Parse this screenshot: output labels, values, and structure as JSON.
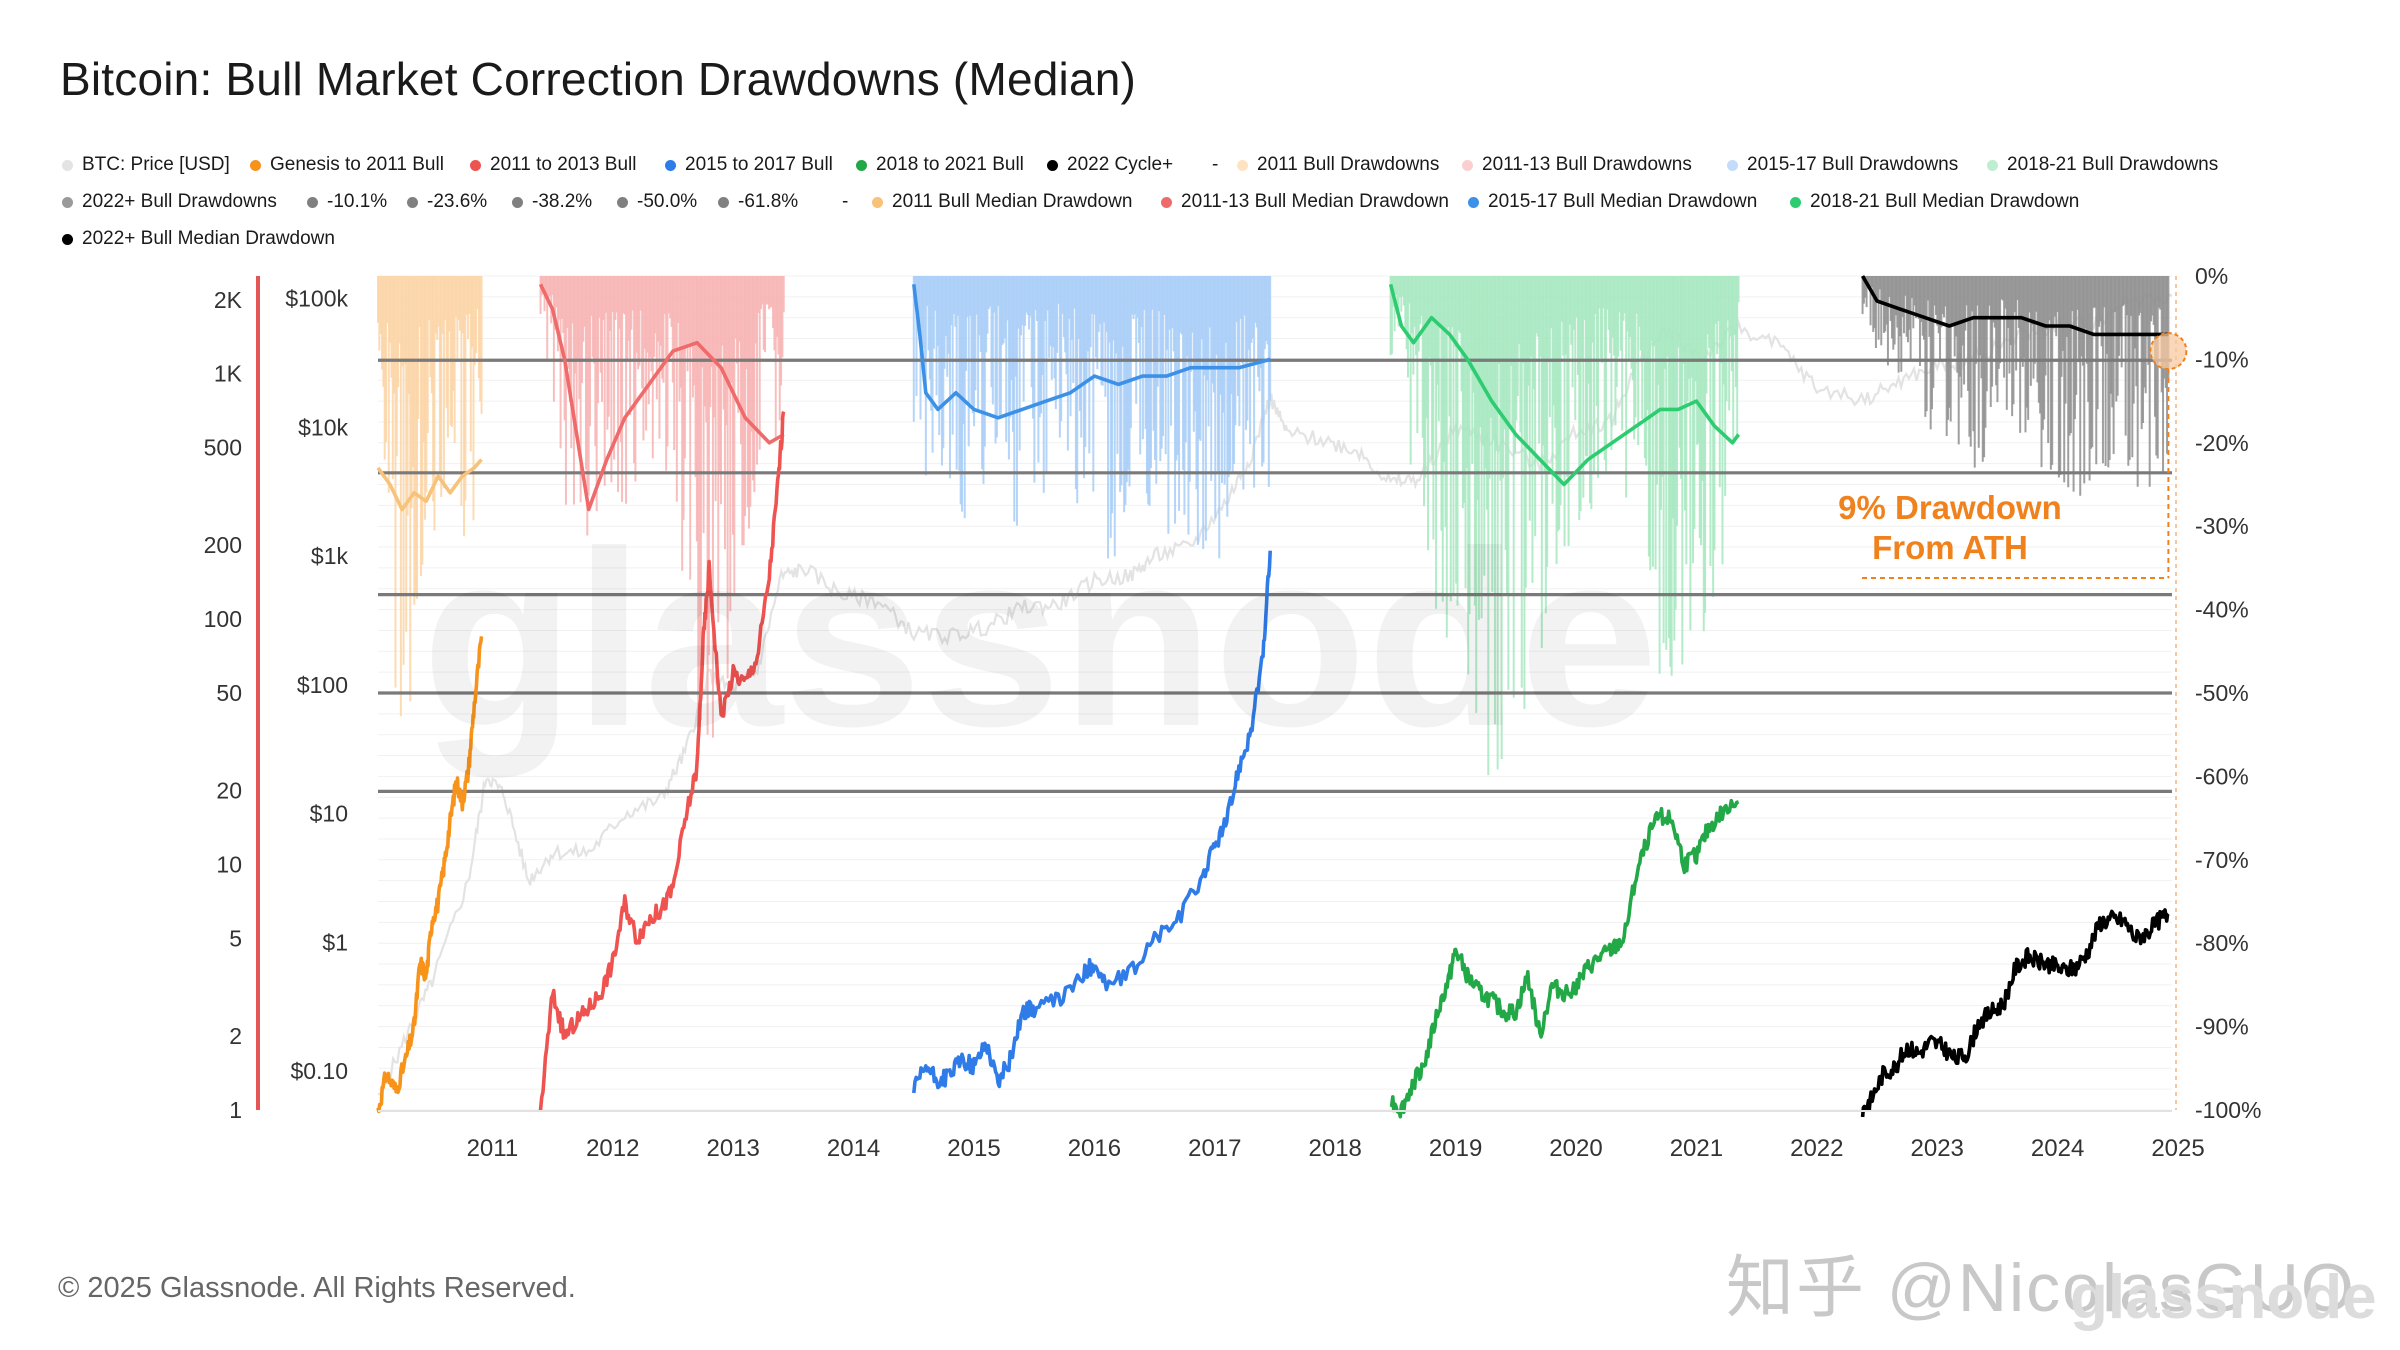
{
  "title": "Bitcoin: Bull Market Correction Drawdowns (Median)",
  "legend_rows": [
    [
      {
        "label": "BTC: Price [USD]",
        "color": "#e3e3e3",
        "marker": "dot"
      },
      {
        "label": "Genesis to 2011 Bull",
        "color": "#f7931a",
        "marker": "dot"
      },
      {
        "label": "2011 to 2013 Bull",
        "color": "#ef5350",
        "marker": "dot"
      },
      {
        "label": "2015 to 2017 Bull",
        "color": "#2f7be8",
        "marker": "dot"
      },
      {
        "label": "2018 to 2021 Bull",
        "color": "#22a846",
        "marker": "dot"
      },
      {
        "label": "2022 Cycle+",
        "color": "#000000",
        "marker": "dot"
      },
      {
        "label": "-",
        "color": "",
        "marker": "none"
      },
      {
        "label": "2011 Bull Drawdowns",
        "color": "#fde3c2",
        "marker": "dot"
      },
      {
        "label": "2011-13 Bull Drawdowns",
        "color": "#fbcfd0",
        "marker": "dot"
      },
      {
        "label": "2015-17 Bull Drawdowns",
        "color": "#c4dcfb",
        "marker": "dot"
      },
      {
        "label": "2018-21 Bull Drawdowns",
        "color": "#bdeed0",
        "marker": "dot"
      }
    ],
    [
      {
        "label": "2022+ Bull Drawdowns",
        "color": "#9a9a9a",
        "marker": "dot"
      },
      {
        "label": "-10.1%",
        "color": "#808080",
        "marker": "dot"
      },
      {
        "label": "-23.6%",
        "color": "#808080",
        "marker": "dot"
      },
      {
        "label": "-38.2%",
        "color": "#808080",
        "marker": "dot"
      },
      {
        "label": "-50.0%",
        "color": "#808080",
        "marker": "dot"
      },
      {
        "label": "-61.8%",
        "color": "#808080",
        "marker": "dot"
      },
      {
        "label": "-",
        "color": "",
        "marker": "none"
      },
      {
        "label": "2011 Bull Median Drawdown",
        "color": "#f7c27a",
        "marker": "dot"
      },
      {
        "label": "2011-13 Bull Median Drawdown",
        "color": "#ef6b6b",
        "marker": "dot"
      },
      {
        "label": "2015-17 Bull Median Drawdown",
        "color": "#3c91e6",
        "marker": "dot"
      },
      {
        "label": "2018-21 Bull Median Drawdown",
        "color": "#2ecc71",
        "marker": "dot"
      }
    ],
    [
      {
        "label": "2022+ Bull Median Drawdown",
        "color": "#000000",
        "marker": "dot"
      }
    ]
  ],
  "axes": {
    "multiplier_ticks": [
      "2K",
      "1K",
      "500",
      "200",
      "100",
      "50",
      "20",
      "10",
      "5",
      "2",
      "1"
    ],
    "price_ticks": [
      "$100k",
      "$10k",
      "$1k",
      "$100",
      "$10",
      "$1",
      "$0.10"
    ],
    "drawdown_ticks": [
      "0%",
      "-10%",
      "-20%",
      "-30%",
      "-40%",
      "-50%",
      "-60%",
      "-70%",
      "-80%",
      "-90%",
      "-100%"
    ],
    "x_ticks": [
      "2011",
      "2012",
      "2013",
      "2014",
      "2015",
      "2016",
      "2017",
      "2018",
      "2019",
      "2020",
      "2021",
      "2022",
      "2023",
      "2024",
      "2025"
    ]
  },
  "annotation": {
    "line1": "9% Drawdown",
    "line2": "From ATH"
  },
  "watermark": {
    "logo_text": "glassnode"
  },
  "copyright": "© 2025 Glassnode. All Rights Reserved.",
  "watermark_zh": "知乎 @NicolasGUO",
  "chart_data": {
    "type": "line",
    "title": "Bitcoin: Bull Market Correction Drawdowns (Median)",
    "x_range": [
      2010.55,
      2025.45
    ],
    "y_left_scale": "log",
    "y_left_multiplier_range": [
      1,
      2500
    ],
    "y_left_price_range": [
      0.05,
      150000
    ],
    "y_right_range": [
      -100,
      0
    ],
    "fib_levels": [
      -10.1,
      -23.6,
      -38.2,
      -50.0,
      -61.8
    ],
    "series": [
      {
        "name": "BTC: Price [USD]",
        "axis": "price",
        "color": "#e3e3e3",
        "x": [
          2010.55,
          2010.8,
          2011.0,
          2011.3,
          2011.45,
          2011.6,
          2011.8,
          2012.0,
          2012.3,
          2012.6,
          2012.9,
          2013.1,
          2013.3,
          2013.5,
          2013.7,
          2013.9,
          2014.1,
          2014.4,
          2014.7,
          2015.0,
          2015.3,
          2015.6,
          2015.9,
          2016.2,
          2016.5,
          2016.8,
          2017.0,
          2017.3,
          2017.6,
          2017.8,
          2017.96,
          2018.1,
          2018.4,
          2018.7,
          2018.96,
          2019.2,
          2019.5,
          2019.8,
          2020.2,
          2020.5,
          2020.8,
          2021.0,
          2021.25,
          2021.55,
          2021.85,
          2022.2,
          2022.5,
          2022.9,
          2023.2,
          2023.5,
          2023.8,
          2024.2,
          2024.5,
          2024.8,
          2025.1,
          2025.45
        ],
        "y": [
          0.06,
          0.2,
          0.5,
          3,
          20,
          14,
          3,
          5,
          5,
          10,
          13,
          30,
          120,
          90,
          130,
          700,
          800,
          500,
          450,
          250,
          240,
          280,
          400,
          420,
          650,
          700,
          1000,
          1200,
          2700,
          6000,
          17000,
          9000,
          8000,
          6500,
          3700,
          4000,
          10000,
          8000,
          5000,
          9200,
          11500,
          30000,
          58000,
          35000,
          60000,
          42000,
          20000,
          16500,
          23000,
          30000,
          35000,
          52000,
          62000,
          65000,
          100000,
          105000
        ]
      },
      {
        "name": "Genesis to 2011 Bull",
        "axis": "multiplier",
        "color": "#f7931a",
        "x": [
          2010.55,
          2010.62,
          2010.7,
          2010.78,
          2010.85,
          2010.9,
          2010.95,
          2011.0,
          2011.05,
          2011.1,
          2011.15,
          2011.2,
          2011.25,
          2011.3,
          2011.35,
          2011.41
        ],
        "y": [
          1,
          1.4,
          1.2,
          1.6,
          2.2,
          4,
          3.5,
          6,
          7,
          10,
          15,
          22,
          18,
          24,
          45,
          85
        ]
      },
      {
        "name": "2011 to 2013 Bull",
        "axis": "multiplier",
        "color": "#ef5350",
        "x": [
          2011.9,
          2012.0,
          2012.1,
          2012.2,
          2012.3,
          2012.4,
          2012.5,
          2012.6,
          2012.7,
          2012.8,
          2012.9,
          2013.0,
          2013.1,
          2013.2,
          2013.25,
          2013.3,
          2013.4,
          2013.5,
          2013.6,
          2013.7,
          2013.8,
          2013.87,
          2013.92
        ],
        "y": [
          1,
          3,
          2,
          2.3,
          2.6,
          3,
          4,
          7,
          5,
          6,
          6.5,
          8,
          15,
          25,
          80,
          160,
          40,
          60,
          55,
          70,
          150,
          350,
          700
        ]
      },
      {
        "name": "2015 to 2017 Bull",
        "axis": "multiplier",
        "color": "#2f7be8",
        "x": [
          2015.0,
          2015.1,
          2015.2,
          2015.3,
          2015.4,
          2015.5,
          2015.6,
          2015.7,
          2015.8,
          2015.9,
          2016.0,
          2016.2,
          2016.4,
          2016.5,
          2016.6,
          2016.8,
          2017.0,
          2017.2,
          2017.4,
          2017.5,
          2017.6,
          2017.7,
          2017.8,
          2017.9,
          2017.96
        ],
        "y": [
          1.2,
          1.5,
          1.3,
          1.4,
          1.6,
          1.5,
          1.9,
          1.3,
          1.6,
          2.5,
          2.6,
          2.8,
          3.5,
          4,
          3.2,
          3.6,
          5,
          6,
          9,
          12,
          15,
          25,
          35,
          70,
          190
        ]
      },
      {
        "name": "2018 to 2021 Bull",
        "axis": "multiplier",
        "color": "#22a846",
        "x": [
          2018.96,
          2019.05,
          2019.15,
          2019.25,
          2019.35,
          2019.45,
          2019.5,
          2019.6,
          2019.7,
          2019.8,
          2019.9,
          2020.0,
          2020.1,
          2020.2,
          2020.3,
          2020.4,
          2020.5,
          2020.6,
          2020.7,
          2020.8,
          2020.9,
          2021.0,
          2021.1,
          2021.2,
          2021.3,
          2021.4,
          2021.5,
          2021.6,
          2021.7,
          2021.85
        ],
        "y": [
          1.1,
          1.0,
          1.3,
          1.6,
          2.5,
          3.5,
          4.5,
          3.5,
          3.0,
          2.8,
          2.5,
          2.5,
          3.5,
          2.0,
          3.2,
          3.0,
          3.2,
          3.8,
          4.2,
          4.5,
          5,
          9,
          13,
          16,
          15,
          10,
          11,
          14,
          16,
          18
        ]
      },
      {
        "name": "2022 Cycle+",
        "axis": "multiplier",
        "color": "#000000",
        "x": [
          2022.88,
          2022.95,
          2023.05,
          2023.15,
          2023.25,
          2023.35,
          2023.45,
          2023.55,
          2023.65,
          2023.75,
          2023.85,
          2023.95,
          2024.05,
          2024.15,
          2024.25,
          2024.35,
          2024.45,
          2024.55,
          2024.65,
          2024.75,
          2024.85,
          2024.95,
          2025.05,
          2025.15,
          2025.25,
          2025.35,
          2025.42
        ],
        "y": [
          1.0,
          1.1,
          1.4,
          1.5,
          1.8,
          1.7,
          1.9,
          1.8,
          1.6,
          1.7,
          2.3,
          2.5,
          2.7,
          3.8,
          4.2,
          4.0,
          3.9,
          3.7,
          3.8,
          4.4,
          5.8,
          6.0,
          5.9,
          5.0,
          5.3,
          6.0,
          6.3
        ]
      },
      {
        "name": "2011 Bull Median Drawdown",
        "axis": "drawdown",
        "color": "#f7c27a",
        "x": [
          2010.55,
          2010.65,
          2010.75,
          2010.85,
          2010.95,
          2011.05,
          2011.15,
          2011.25,
          2011.35,
          2011.41
        ],
        "y": [
          -23,
          -25,
          -28,
          -26,
          -27,
          -24,
          -26,
          -24,
          -23,
          -22
        ]
      },
      {
        "name": "2011-13 Bull Median Drawdown",
        "axis": "drawdown",
        "color": "#ef6b6b",
        "x": [
          2011.9,
          2012.0,
          2012.1,
          2012.2,
          2012.3,
          2012.45,
          2012.6,
          2012.8,
          2013.0,
          2013.2,
          2013.4,
          2013.6,
          2013.8,
          2013.92
        ],
        "y": [
          -1,
          -4,
          -10,
          -19,
          -28,
          -22,
          -17,
          -13,
          -9,
          -8,
          -11,
          -17,
          -20,
          -19
        ]
      },
      {
        "name": "2015-17 Bull Median Drawdown",
        "axis": "drawdown",
        "color": "#3c91e6",
        "x": [
          2015.0,
          2015.05,
          2015.1,
          2015.2,
          2015.35,
          2015.5,
          2015.7,
          2015.9,
          2016.1,
          2016.3,
          2016.5,
          2016.7,
          2016.9,
          2017.1,
          2017.3,
          2017.5,
          2017.7,
          2017.96
        ],
        "y": [
          -1,
          -7,
          -14,
          -16,
          -14,
          -16,
          -17,
          -16,
          -15,
          -14,
          -12,
          -13,
          -12,
          -12,
          -11,
          -11,
          -11,
          -10
        ]
      },
      {
        "name": "2018-21 Bull Median Drawdown",
        "axis": "drawdown",
        "color": "#2ecc71",
        "x": [
          2018.96,
          2019.05,
          2019.15,
          2019.3,
          2019.45,
          2019.6,
          2019.8,
          2020.0,
          2020.2,
          2020.4,
          2020.6,
          2020.8,
          2021.0,
          2021.2,
          2021.35,
          2021.5,
          2021.65,
          2021.8,
          2021.85
        ],
        "y": [
          -1,
          -6,
          -8,
          -5,
          -7,
          -10,
          -15,
          -19,
          -22,
          -25,
          -22,
          -20,
          -18,
          -16,
          -16,
          -15,
          -18,
          -20,
          -19
        ]
      },
      {
        "name": "2022+ Bull Median Drawdown",
        "axis": "drawdown",
        "color": "#000000",
        "x": [
          2022.88,
          2023.0,
          2023.2,
          2023.4,
          2023.6,
          2023.8,
          2024.0,
          2024.2,
          2024.4,
          2024.6,
          2024.8,
          2025.0,
          2025.2,
          2025.42
        ],
        "y": [
          0,
          -3,
          -4,
          -5,
          -6,
          -5,
          -5,
          -5,
          -6,
          -6,
          -7,
          -7,
          -7,
          -7
        ]
      }
    ],
    "drawdown_bands": [
      {
        "name": "2011 Bull Drawdowns",
        "color": "#fbd4a4",
        "x_start": 2010.55,
        "x_end": 2011.41,
        "min": [
          -25,
          -40,
          -55,
          -45,
          -35,
          -30,
          -28,
          -32,
          -30,
          -22
        ],
        "seed": 3
      },
      {
        "name": "2011-13 Bull Drawdowns",
        "color": "#f7b3b3",
        "x_start": 2011.9,
        "x_end": 2013.92,
        "min": [
          -5,
          -20,
          -35,
          -30,
          -28,
          -25,
          -20,
          -22,
          -55,
          -62,
          -45,
          -30,
          -20,
          -25
        ],
        "seed": 7
      },
      {
        "name": "2015-17 Bull Drawdowns",
        "color": "#a7ccf7",
        "x_start": 2015.0,
        "x_end": 2017.96,
        "min": [
          -20,
          -25,
          -30,
          -28,
          -22,
          -30,
          -25,
          -20,
          -28,
          -32,
          -30,
          -26,
          -28,
          -32,
          -34,
          -30,
          -30,
          -28
        ],
        "seed": 11
      },
      {
        "name": "2018-21 Bull Drawdowns",
        "color": "#a6e8bf",
        "x_start": 2018.96,
        "x_end": 2021.85,
        "min": [
          -10,
          -20,
          -35,
          -40,
          -45,
          -55,
          -62,
          -50,
          -40,
          -35,
          -30,
          -25,
          -28,
          -30,
          -45,
          -53,
          -45,
          -35,
          -20
        ],
        "seed": 17
      },
      {
        "name": "2022+ Bull Drawdowns",
        "color": "#8e8e8e",
        "x_start": 2022.88,
        "x_end": 2025.42,
        "min": [
          -5,
          -12,
          -15,
          -18,
          -20,
          -22,
          -18,
          -20,
          -25,
          -27,
          -25,
          -22,
          -28,
          -20
        ],
        "seed": 23
      }
    ],
    "current_point": {
      "x": 2025.42,
      "y": -9
    }
  }
}
